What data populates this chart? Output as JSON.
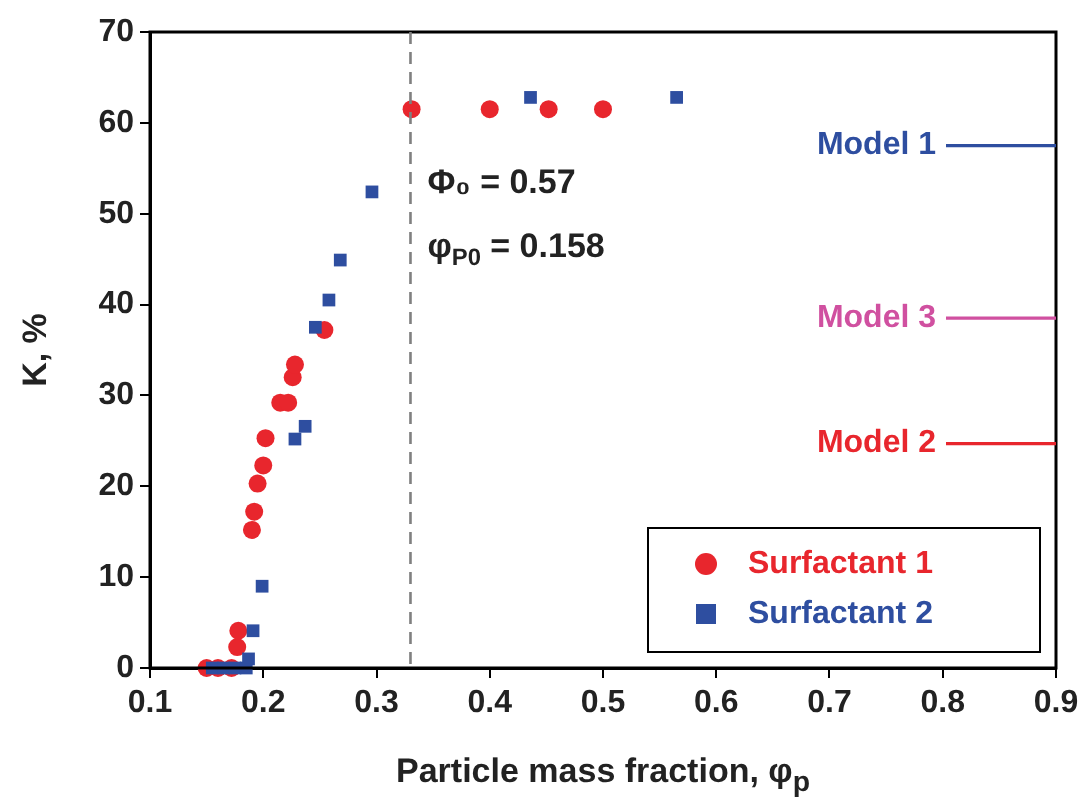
{
  "chart_data": {
    "type": "scatter",
    "xlabel": "Particle mass fraction, φ$_{p}$",
    "ylabel": "K, %",
    "xlim": [
      0.1,
      0.9
    ],
    "xticks": [
      0.1,
      0.2,
      0.3,
      0.4,
      0.5,
      0.6,
      0.7,
      0.8,
      0.9
    ],
    "ylim": [
      0,
      70
    ],
    "yticks": [
      0,
      10,
      20,
      30,
      40,
      50,
      60,
      70
    ],
    "grid": false,
    "legend": "bottom right",
    "series": [
      {
        "name": "Surfactant 1",
        "color": "#e8262d",
        "marker": "circle",
        "x": [
          0.15,
          0.16,
          0.172,
          0.177,
          0.178,
          0.19,
          0.192,
          0.195,
          0.2,
          0.202,
          0.215,
          0.222,
          0.226,
          0.228,
          0.254,
          0.331,
          0.4,
          0.452,
          0.5
        ],
        "values": [
          0,
          0,
          0,
          2.3,
          4.1,
          15.2,
          17.2,
          20.3,
          22.3,
          25.3,
          29.2,
          29.2,
          32,
          33.4,
          37.2,
          61.5,
          61.5,
          61.5,
          61.5
        ]
      },
      {
        "name": "Surfactant 2",
        "color": "#2e4ea0",
        "marker": "square",
        "x": [
          0.155,
          0.165,
          0.175,
          0.185,
          0.187,
          0.191,
          0.199,
          0.228,
          0.237,
          0.246,
          0.258,
          0.268,
          0.296,
          0.436,
          0.565
        ],
        "values": [
          0,
          0,
          0,
          0,
          1,
          4.1,
          9,
          25.2,
          26.6,
          37.5,
          40.5,
          44.9,
          52.4,
          62.8,
          62.8
        ]
      }
    ],
    "ref_lines": [
      {
        "axis": "x",
        "value": 0.33,
        "color": "#808080",
        "line_style": "dashed"
      },
      {
        "axis": "y",
        "value": 57.5,
        "label": "Model 1",
        "color": "#2e4ea0",
        "line_style": "solid"
      },
      {
        "axis": "y",
        "value": 38.5,
        "label": "Model 3",
        "color": "#d050a0",
        "line_style": "solid"
      },
      {
        "axis": "y",
        "value": 24.7,
        "label": "Model 2",
        "color": "#e8262d",
        "line_style": "solid"
      }
    ],
    "annotations": [
      "Φ₀ = 0.57",
      "φ$_{P0}$ = 0.158"
    ]
  }
}
